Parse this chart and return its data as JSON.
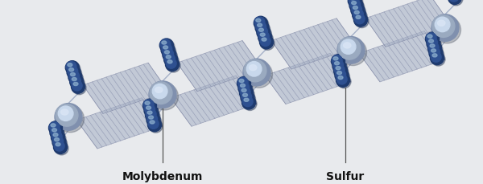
{
  "bg_color": "#e8eaed",
  "molybdenum_label": "Molybdenum",
  "sulfur_label": "Sulfur",
  "label_fontsize": 10,
  "label_color": "#111111",
  "sulfur_dark": "#1e3a6e",
  "sulfur_mid": "#2e5090",
  "sulfur_highlight": "#8aaccc",
  "mo_base": "#8090ae",
  "mo_shadow": "#5a6888",
  "mo_highlight": "#d8e4f4",
  "slab_face": "#aab4c8",
  "slab_edge": "#7880a0",
  "line_color": "#555555",
  "bond_color": "#8898b8"
}
